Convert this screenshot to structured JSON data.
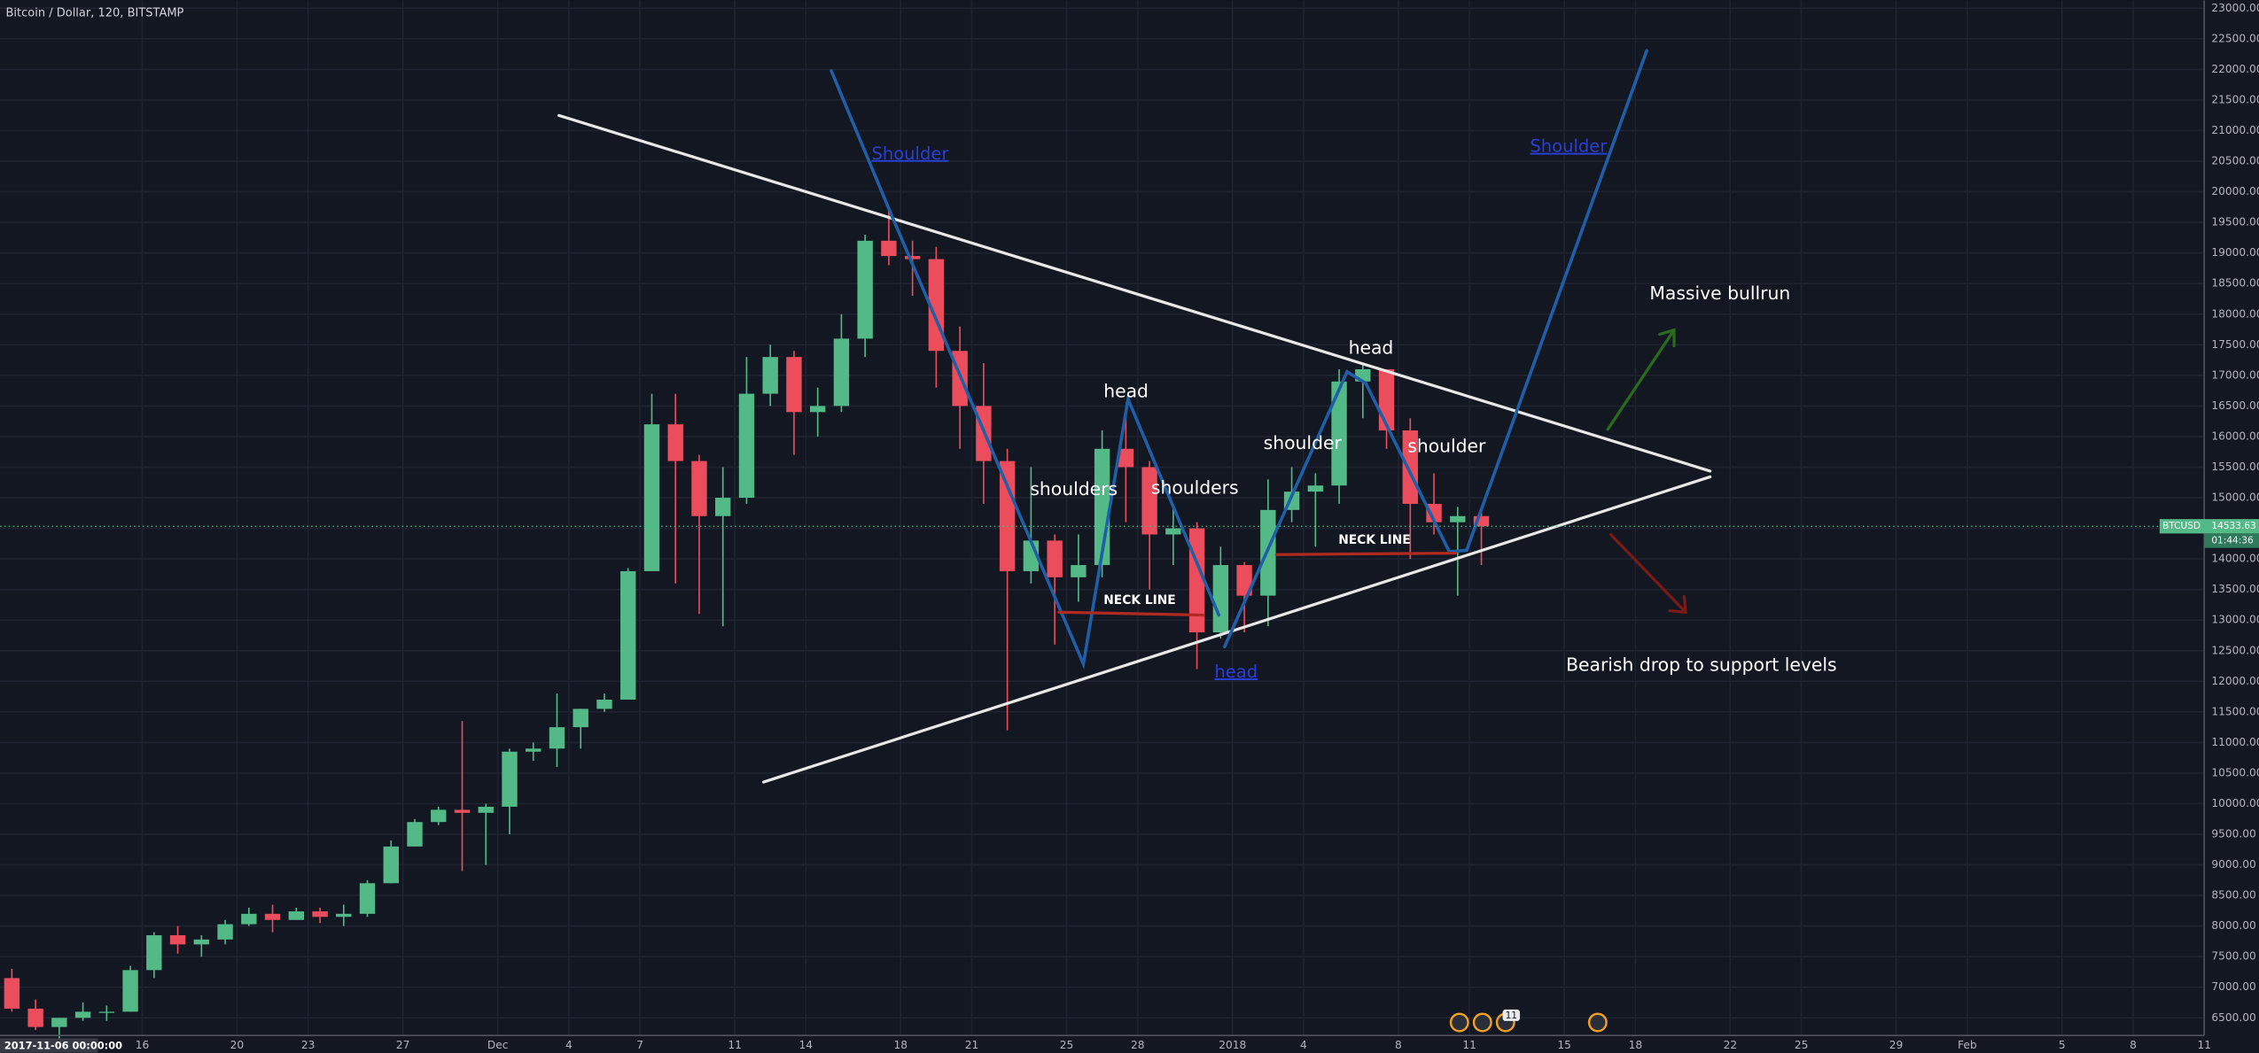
{
  "chart_data": {
    "type": "candlestick",
    "title": "Bitcoin / Dollar, 120, BITSTAMP",
    "cursor_time_label": "2017-11-06 00:00:00",
    "symbol_tag": "BTCUSD",
    "last_price": 14533.63,
    "countdown": "01:44:36",
    "up_color": "#53b987",
    "down_color": "#eb4d5c",
    "grid": true,
    "x": [
      "2017-11-10",
      "2017-11-11",
      "2017-11-12",
      "2017-11-13",
      "2017-11-14",
      "2017-11-15",
      "2017-11-16",
      "2017-11-17",
      "2017-11-18",
      "2017-11-19",
      "2017-11-20",
      "2017-11-21",
      "2017-11-22",
      "2017-11-23",
      "2017-11-24",
      "2017-11-25",
      "2017-11-26",
      "2017-11-27",
      "2017-11-28",
      "2017-11-29",
      "2017-11-30",
      "2017-12-01",
      "2017-12-02",
      "2017-12-03",
      "2017-12-04",
      "2017-12-05",
      "2017-12-06",
      "2017-12-07",
      "2017-12-08",
      "2017-12-09",
      "2017-12-10",
      "2017-12-11",
      "2017-12-12",
      "2017-12-13",
      "2017-12-14",
      "2017-12-15",
      "2017-12-16",
      "2017-12-17",
      "2017-12-18",
      "2017-12-19",
      "2017-12-20",
      "2017-12-21",
      "2017-12-22",
      "2017-12-23",
      "2017-12-24",
      "2017-12-25",
      "2017-12-26",
      "2017-12-27",
      "2017-12-28",
      "2017-12-29",
      "2017-12-30",
      "2017-12-31",
      "2018-01-01",
      "2018-01-02",
      "2018-01-03",
      "2018-01-04",
      "2018-01-05",
      "2018-01-06",
      "2018-01-07",
      "2018-01-08",
      "2018-01-09",
      "2018-01-10",
      "2018-01-11"
    ],
    "open": [
      7150,
      6650,
      6350,
      6500,
      6600,
      6600,
      7280,
      7850,
      7700,
      7780,
      8030,
      8200,
      8100,
      8240,
      8150,
      8200,
      8700,
      9300,
      9700,
      9900,
      9850,
      9950,
      10850,
      10900,
      11250,
      11550,
      11700,
      13800,
      16200,
      15600,
      14700,
      15000,
      16700,
      17300,
      16400,
      16500,
      17600,
      19200,
      18950,
      18900,
      17400,
      16500,
      15600,
      13800,
      14300,
      13700,
      13900,
      15800,
      15500,
      14400,
      14500,
      12800,
      13900,
      13400,
      14800,
      15100,
      15200,
      16900,
      17100,
      16100,
      14900,
      14600,
      14700
    ],
    "high": [
      7300,
      6800,
      6500,
      6750,
      6700,
      7350,
      7900,
      8000,
      7850,
      8100,
      8300,
      8350,
      8300,
      8300,
      8350,
      8750,
      9400,
      9750,
      9950,
      11350,
      10000,
      10900,
      11000,
      11800,
      11550,
      11800,
      13850,
      16700,
      16700,
      15700,
      15500,
      17300,
      17500,
      17400,
      16800,
      18000,
      19300,
      19700,
      19200,
      19100,
      17800,
      17200,
      15800,
      15500,
      14400,
      14400,
      16100,
      16500,
      15600,
      14900,
      14600,
      14200,
      13950,
      15300,
      15500,
      15400,
      17100,
      17200,
      17100,
      16300,
      15400,
      14850,
      14800
    ],
    "low": [
      6600,
      6300,
      5950,
      6450,
      6450,
      6600,
      7150,
      7550,
      7500,
      7700,
      8000,
      7900,
      8100,
      8050,
      8000,
      8150,
      8700,
      9300,
      9650,
      8900,
      9000,
      9500,
      10700,
      10600,
      10900,
      11500,
      11700,
      13800,
      13600,
      13100,
      12900,
      14900,
      16500,
      15700,
      16000,
      16400,
      17300,
      18800,
      18300,
      16800,
      15800,
      14900,
      11200,
      13600,
      12600,
      13300,
      13700,
      14600,
      13500,
      13900,
      12200,
      12700,
      12800,
      12900,
      14600,
      14200,
      14900,
      16300,
      15800,
      14000,
      14400,
      13400,
      13900
    ],
    "close": [
      6650,
      6350,
      6500,
      6600,
      6600,
      7280,
      7850,
      7700,
      7780,
      8030,
      8200,
      8100,
      8240,
      8150,
      8200,
      8700,
      9300,
      9700,
      9900,
      9850,
      9950,
      10850,
      10900,
      11250,
      11550,
      11700,
      13800,
      16200,
      15600,
      14700,
      15000,
      16700,
      17300,
      16400,
      16500,
      17600,
      19200,
      18950,
      18900,
      17400,
      16500,
      15600,
      13800,
      14300,
      13700,
      13900,
      15800,
      15500,
      14400,
      14500,
      12800,
      13900,
      13400,
      14800,
      15100,
      15200,
      16900,
      17100,
      16100,
      14900,
      14600,
      14700,
      14533.63
    ],
    "xlim": [
      "2017-11-10",
      "2018-02-11"
    ],
    "xticks": [
      {
        "value": "2017-11-16",
        "label": "16"
      },
      {
        "value": "2017-11-20",
        "label": "20"
      },
      {
        "value": "2017-11-23",
        "label": "23"
      },
      {
        "value": "2017-11-27",
        "label": "27"
      },
      {
        "value": "2017-12-01",
        "label": "Dec"
      },
      {
        "value": "2017-12-04",
        "label": "4"
      },
      {
        "value": "2017-12-07",
        "label": "7"
      },
      {
        "value": "2017-12-11",
        "label": "11"
      },
      {
        "value": "2017-12-14",
        "label": "14"
      },
      {
        "value": "2017-12-18",
        "label": "18"
      },
      {
        "value": "2017-12-21",
        "label": "21"
      },
      {
        "value": "2017-12-25",
        "label": "25"
      },
      {
        "value": "2017-12-28",
        "label": "28"
      },
      {
        "value": "2018-01-01",
        "label": "2018"
      },
      {
        "value": "2018-01-04",
        "label": "4"
      },
      {
        "value": "2018-01-08",
        "label": "8"
      },
      {
        "value": "2018-01-11",
        "label": "11"
      },
      {
        "value": "2018-01-15",
        "label": "15"
      },
      {
        "value": "2018-01-18",
        "label": "18"
      },
      {
        "value": "2018-01-22",
        "label": "22"
      },
      {
        "value": "2018-01-25",
        "label": "25"
      },
      {
        "value": "2018-01-29",
        "label": "29"
      },
      {
        "value": "2018-02-01",
        "label": "Feb"
      },
      {
        "value": "2018-02-05",
        "label": "5"
      },
      {
        "value": "2018-02-08",
        "label": "8"
      },
      {
        "value": "2018-02-11",
        "label": "11"
      }
    ],
    "ylim": [
      5930,
      23130
    ],
    "yticks": [
      {
        "value": 6500,
        "label": "6500.00"
      },
      {
        "value": 7000,
        "label": "7000.00"
      },
      {
        "value": 7500,
        "label": "7500.00"
      },
      {
        "value": 8000,
        "label": "8000.00"
      },
      {
        "value": 8500,
        "label": "8500.00"
      },
      {
        "value": 9000,
        "label": "9000.00"
      },
      {
        "value": 9500,
        "label": "9500.00"
      },
      {
        "value": 10000,
        "label": "10000.00"
      },
      {
        "value": 10500,
        "label": "10500.00"
      },
      {
        "value": 11000,
        "label": "11000.00"
      },
      {
        "value": 11500,
        "label": "11500.00"
      },
      {
        "value": 12000,
        "label": "12000.00"
      },
      {
        "value": 12500,
        "label": "12500.00"
      },
      {
        "value": 13000,
        "label": "13000.00"
      },
      {
        "value": 13500,
        "label": "13500.00"
      },
      {
        "value": 14000,
        "label": "14000.00"
      },
      {
        "value": 14500,
        "label": "14500.00"
      },
      {
        "value": 15000,
        "label": "15000.00"
      },
      {
        "value": 15500,
        "label": "15500.00"
      },
      {
        "value": 16000,
        "label": "16000.00"
      },
      {
        "value": 16500,
        "label": "16500.00"
      },
      {
        "value": 17000,
        "label": "17000.00"
      },
      {
        "value": 17500,
        "label": "17500.00"
      },
      {
        "value": 18000,
        "label": "18000.00"
      },
      {
        "value": 18500,
        "label": "18500.00"
      },
      {
        "value": 19000,
        "label": "19000.00"
      },
      {
        "value": 19500,
        "label": "19500.00"
      },
      {
        "value": 20000,
        "label": "20000.00"
      },
      {
        "value": 20500,
        "label": "20500.00"
      },
      {
        "value": 21000,
        "label": "21000.00"
      },
      {
        "value": 21500,
        "label": "21500.00"
      },
      {
        "value": 22000,
        "label": "22000.00"
      },
      {
        "value": 22500,
        "label": "22500.00"
      },
      {
        "value": 23000,
        "label": "23000.00"
      }
    ],
    "annotations": [
      "Shoulder",
      "Shoulder",
      "head",
      "head",
      "shoulders",
      "shoulders",
      "NECK LINE",
      "shoulder",
      "head",
      "shoulder",
      "NECK LINE",
      "Massive bullrun",
      "Bearish drop to support levels"
    ],
    "event_badge": "11"
  }
}
